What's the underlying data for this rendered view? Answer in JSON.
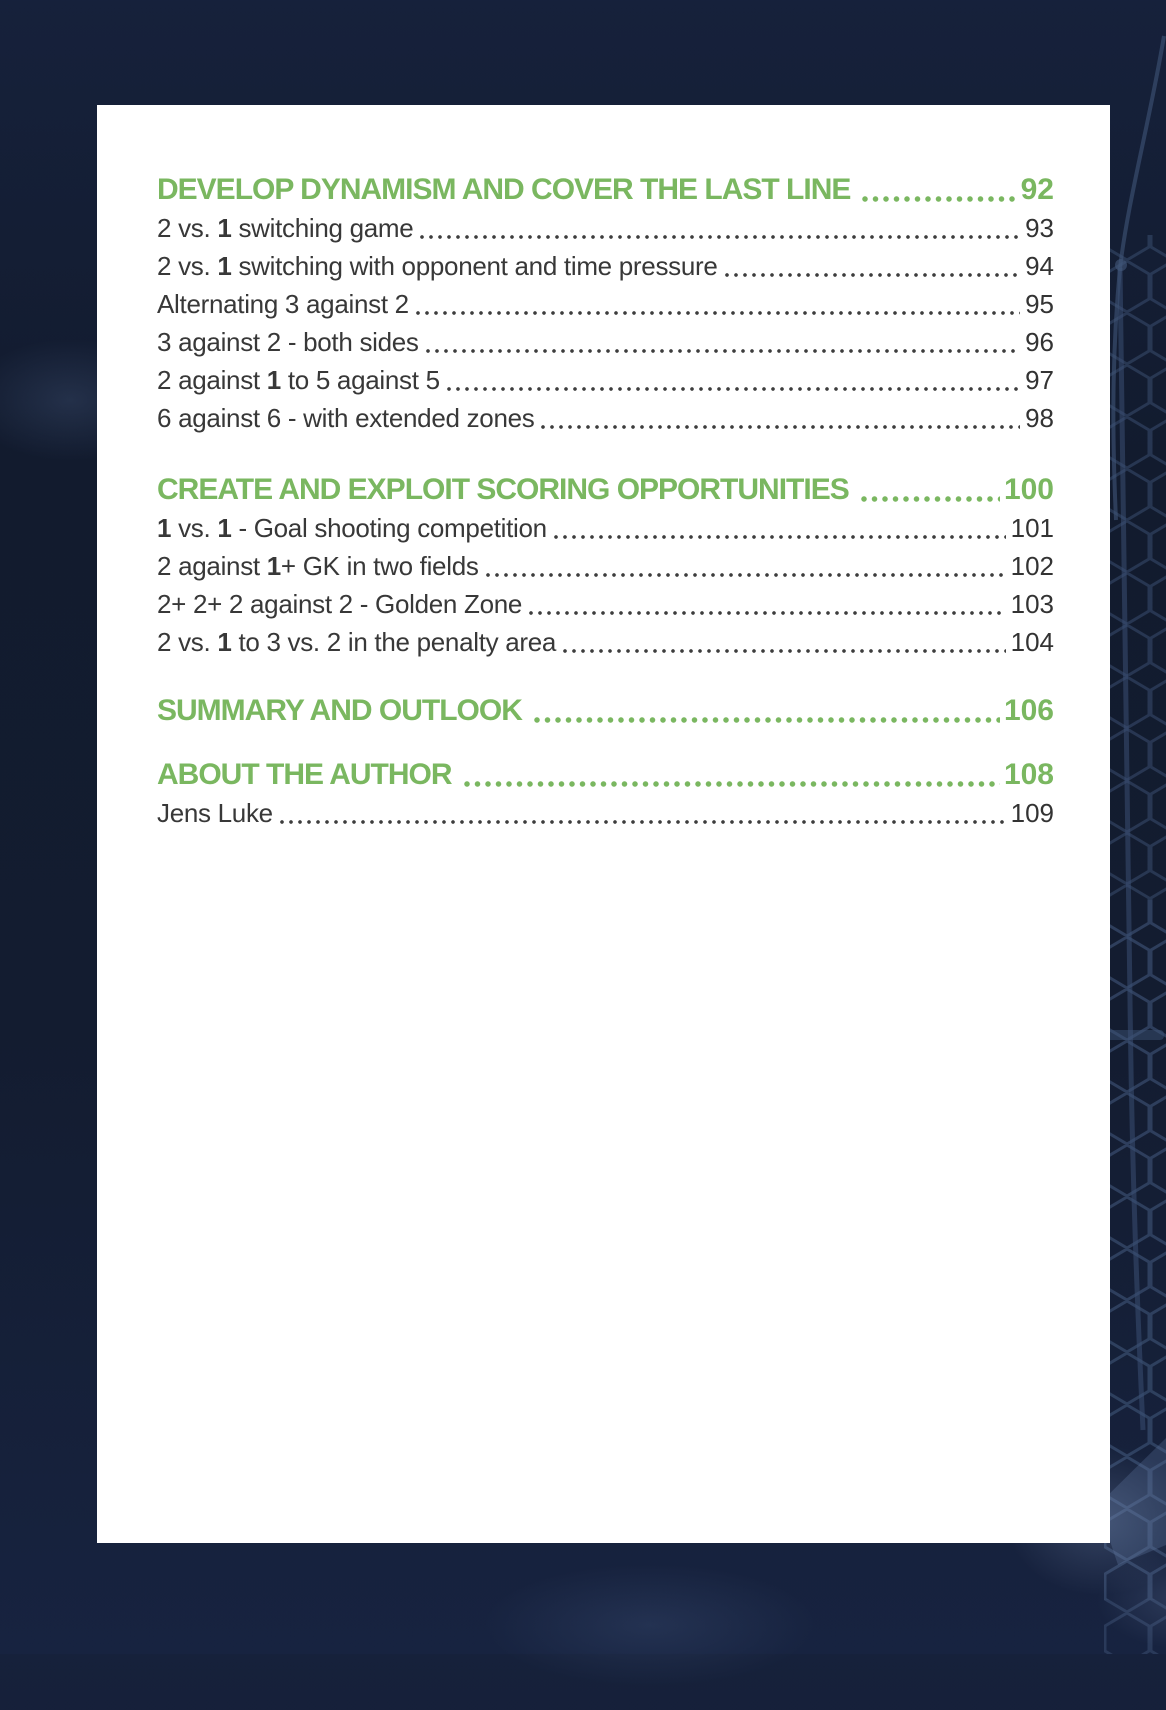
{
  "page": {
    "background_color": "#131c30",
    "paper_color": "#ffffff",
    "accent_green": "#7ab760",
    "entry_text_color": "#383838"
  },
  "toc": {
    "sections": [
      {
        "title": "DEVELOP DYNAMISM AND COVER THE LAST LINE",
        "page": "92",
        "items": [
          {
            "label": "2 vs. 1 switching game",
            "page": "93"
          },
          {
            "label": "2 vs. 1 switching with opponent and time pressure",
            "page": "94"
          },
          {
            "label": "Alternating 3 against 2",
            "page": "95"
          },
          {
            "label": "3 against 2 - both sides",
            "page": "96"
          },
          {
            "label": "2 against 1 to 5 against 5",
            "page": "97"
          },
          {
            "label": "6 against 6 - with extended zones",
            "page": "98"
          }
        ]
      },
      {
        "title": "CREATE AND EXPLOIT SCORING OPPORTUNITIES",
        "page": "100",
        "items": [
          {
            "label": "1 vs. 1 - Goal shooting competition",
            "page": "101"
          },
          {
            "label": "2 against 1+ GK in two fields",
            "page": "102"
          },
          {
            "label": "2+ 2+ 2 against 2 - Golden Zone",
            "page": "103"
          },
          {
            "label": "2 vs. 1 to 3 vs. 2 in the penalty area",
            "page": "104"
          }
        ]
      },
      {
        "title": "SUMMARY AND OUTLOOK",
        "page": "106",
        "items": []
      },
      {
        "title": "ABOUT THE AUTHOR",
        "page": "108",
        "items": [
          {
            "label": "Jens Luke",
            "page": "109"
          }
        ]
      }
    ]
  }
}
